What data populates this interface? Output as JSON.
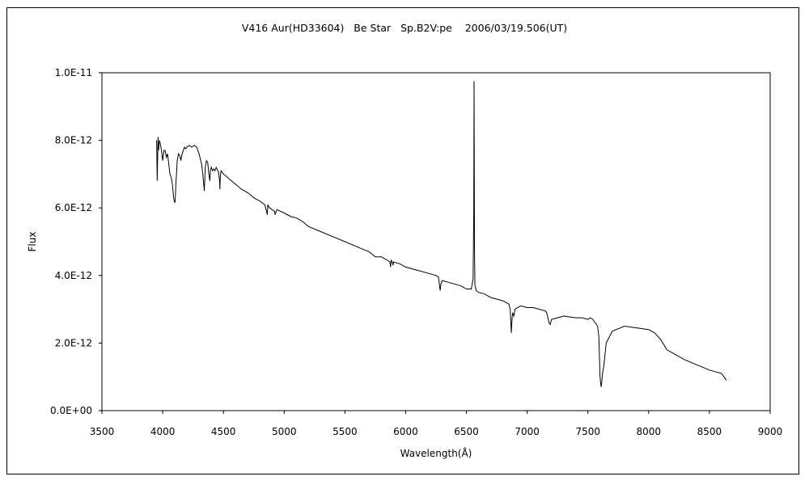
{
  "chart_data": {
    "type": "line",
    "title": "V416 Aur(HD33604)   Be Star   Sp.B2V:pe    2006/03/19.506(UT)",
    "xlabel": "Wavelength(Å)",
    "ylabel": "Flux",
    "xlim": [
      3500,
      9000
    ],
    "ylim": [
      0,
      1e-11
    ],
    "xticks": [
      3500,
      4000,
      4500,
      5000,
      5500,
      6000,
      6500,
      7000,
      7500,
      8000,
      8500,
      9000
    ],
    "xtick_labels": [
      "3500",
      "4000",
      "4500",
      "5000",
      "5500",
      "6000",
      "6500",
      "7000",
      "7500",
      "8000",
      "8500",
      "9000"
    ],
    "yticks": [
      0,
      2e-12,
      4e-12,
      6e-12,
      8e-12,
      1e-11
    ],
    "ytick_labels": [
      "0.0E+00",
      "2.0E-12",
      "4.0E-12",
      "6.0E-12",
      "8.0E-12",
      "1.0E-11"
    ],
    "grid": false,
    "legend": "none",
    "line_color": "#000000",
    "series": [
      {
        "x": [
          3950,
          3955,
          3962,
          3966,
          3970,
          3975,
          3980,
          3990,
          4000,
          4010,
          4020,
          4030,
          4040,
          4050,
          4060,
          4070,
          4080,
          4090,
          4095,
          4100,
          4102,
          4105,
          4110,
          4115,
          4120,
          4130,
          4140,
          4150,
          4160,
          4170,
          4180,
          4190,
          4200,
          4220,
          4240,
          4260,
          4280,
          4300,
          4320,
          4330,
          4335,
          4340,
          4342,
          4345,
          4350,
          4360,
          4370,
          4380,
          4388,
          4392,
          4400,
          4410,
          4420,
          4430,
          4440,
          4460,
          4468,
          4471,
          4474,
          4480,
          4500,
          4520,
          4550,
          4600,
          4650,
          4700,
          4750,
          4800,
          4840,
          4855,
          4861,
          4865,
          4870,
          4880,
          4900,
          4921,
          4925,
          4940,
          5000,
          5050,
          5100,
          5150,
          5200,
          5300,
          5400,
          5500,
          5600,
          5700,
          5750,
          5800,
          5850,
          5870,
          5876,
          5880,
          5890,
          5896,
          5900,
          5950,
          6000,
          6100,
          6200,
          6250,
          6270,
          6284,
          6290,
          6300,
          6350,
          6400,
          6450,
          6500,
          6540,
          6555,
          6560,
          6563,
          6566,
          6570,
          6575,
          6580,
          6600,
          6650,
          6700,
          6800,
          6850,
          6860,
          6866,
          6869,
          6875,
          6880,
          6890,
          6900,
          6920,
          6950,
          7000,
          7050,
          7100,
          7150,
          7160,
          7180,
          7190,
          7200,
          7250,
          7300,
          7400,
          7450,
          7500,
          7520,
          7540,
          7560,
          7580,
          7590,
          7595,
          7600,
          7605,
          7610,
          7615,
          7620,
          7630,
          7650,
          7700,
          7800,
          7900,
          8000,
          8050,
          8100,
          8150,
          8200,
          8250,
          8300,
          8400,
          8500,
          8600,
          8620,
          8640
        ],
        "y": [
          8e-12,
          6.8e-12,
          8.1e-12,
          7.7e-12,
          7.9e-12,
          8e-12,
          7.9e-12,
          7.7e-12,
          7.4e-12,
          7.7e-12,
          7.7e-12,
          7.5e-12,
          7.6e-12,
          7.3e-12,
          7e-12,
          6.9e-12,
          6.7e-12,
          6.3e-12,
          6.2e-12,
          6.15e-12,
          6.2e-12,
          6.4e-12,
          6.8e-12,
          7.1e-12,
          7.4e-12,
          7.6e-12,
          7.55e-12,
          7.4e-12,
          7.6e-12,
          7.7e-12,
          7.8e-12,
          7.75e-12,
          7.8e-12,
          7.85e-12,
          7.8e-12,
          7.85e-12,
          7.8e-12,
          7.6e-12,
          7.3e-12,
          7e-12,
          6.8e-12,
          6.6e-12,
          6.5e-12,
          6.7e-12,
          7.2e-12,
          7.4e-12,
          7.35e-12,
          7e-12,
          6.8e-12,
          7.1e-12,
          7.2e-12,
          7.1e-12,
          7.15e-12,
          7.1e-12,
          7.2e-12,
          7.05e-12,
          6.8e-12,
          6.55e-12,
          6.9e-12,
          7.1e-12,
          7e-12,
          6.95e-12,
          6.85e-12,
          6.7e-12,
          6.55e-12,
          6.45e-12,
          6.3e-12,
          6.2e-12,
          6.1e-12,
          5.9e-12,
          5.8e-12,
          6.1e-12,
          6.05e-12,
          6e-12,
          5.95e-12,
          5.9e-12,
          5.8e-12,
          5.95e-12,
          5.85e-12,
          5.75e-12,
          5.7e-12,
          5.6e-12,
          5.45e-12,
          5.3e-12,
          5.15e-12,
          5e-12,
          4.85e-12,
          4.7e-12,
          4.55e-12,
          4.55e-12,
          4.45e-12,
          4.4e-12,
          4.25e-12,
          4.45e-12,
          4.4e-12,
          4.3e-12,
          4.4e-12,
          4.35e-12,
          4.25e-12,
          4.15e-12,
          4.05e-12,
          4e-12,
          3.95e-12,
          3.55e-12,
          3.75e-12,
          3.85e-12,
          3.8e-12,
          3.75e-12,
          3.7e-12,
          3.6e-12,
          3.6e-12,
          3.9e-12,
          5.9e-12,
          9.75e-12,
          4.8e-12,
          3.7e-12,
          3.65e-12,
          3.55e-12,
          3.5e-12,
          3.45e-12,
          3.35e-12,
          3.25e-12,
          3.15e-12,
          3e-12,
          2.6e-12,
          2.3e-12,
          2.7e-12,
          2.9e-12,
          2.8e-12,
          3e-12,
          3.05e-12,
          3.1e-12,
          3.05e-12,
          3.05e-12,
          3e-12,
          2.95e-12,
          2.9e-12,
          2.6e-12,
          2.55e-12,
          2.7e-12,
          2.75e-12,
          2.8e-12,
          2.75e-12,
          2.75e-12,
          2.7e-12,
          2.75e-12,
          2.7e-12,
          2.6e-12,
          2.5e-12,
          2.2e-12,
          1.6e-12,
          1e-12,
          8e-13,
          7e-13,
          9e-13,
          1.1e-12,
          1.3e-12,
          2e-12,
          2.35e-12,
          2.5e-12,
          2.45e-12,
          2.4e-12,
          2.3e-12,
          2.1e-12,
          1.8e-12,
          1.7e-12,
          1.6e-12,
          1.5e-12,
          1.35e-12,
          1.2e-12,
          1.1e-12,
          1e-12,
          9e-13
        ]
      }
    ]
  }
}
